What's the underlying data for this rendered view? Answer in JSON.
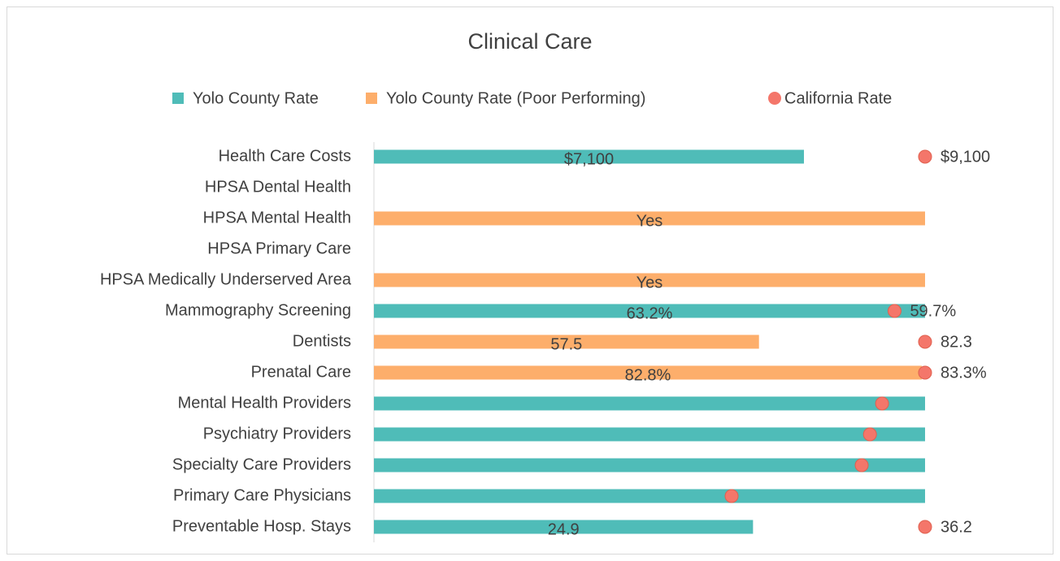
{
  "chart_data": {
    "type": "bar",
    "orientation": "horizontal",
    "title": "Clinical Care",
    "categories": [
      "Health Care Costs",
      "HPSA Dental Health",
      "HPSA Mental Health",
      "HPSA Primary Care",
      "HPSA Medically Underserved Area",
      "Mammography Screening",
      "Dentists",
      "Prenatal Care",
      "Mental Health Providers",
      "Psychiatry Providers",
      "Specialty Care Providers",
      "Primary Care Physicians",
      "Preventable Hosp. Stays"
    ],
    "series": [
      {
        "name": "Yolo County Rate",
        "color": "#4fbcb8",
        "mark": "bar",
        "values": [
          7100,
          null,
          null,
          null,
          null,
          63.2,
          null,
          null,
          100,
          100,
          100,
          100,
          24.9
        ],
        "value_labels": [
          "$7,100",
          null,
          null,
          null,
          null,
          "63.2%",
          null,
          null,
          null,
          null,
          null,
          null,
          "24.9"
        ]
      },
      {
        "name": "Yolo County Rate (Poor Performing)",
        "color": "#fdae6b",
        "mark": "bar",
        "values": [
          null,
          null,
          null,
          null,
          null,
          null,
          57.5,
          82.8,
          null,
          null,
          null,
          null,
          null
        ],
        "value_labels": [
          null,
          null,
          "Yes",
          null,
          "Yes",
          null,
          "57.5",
          "82.8%",
          null,
          null,
          null,
          null,
          null
        ]
      },
      {
        "name": "California Rate",
        "color": "#f4766a",
        "mark": "dot",
        "values": [
          9100,
          null,
          null,
          null,
          null,
          59.7,
          82.3,
          83.3,
          92.2,
          90,
          88.5,
          64.9,
          36.2
        ],
        "value_labels": [
          "$9,100",
          null,
          null,
          null,
          null,
          "59.7%",
          "82.3",
          "83.3%",
          null,
          null,
          null,
          null,
          "36.2"
        ]
      }
    ],
    "legend": "top"
  }
}
